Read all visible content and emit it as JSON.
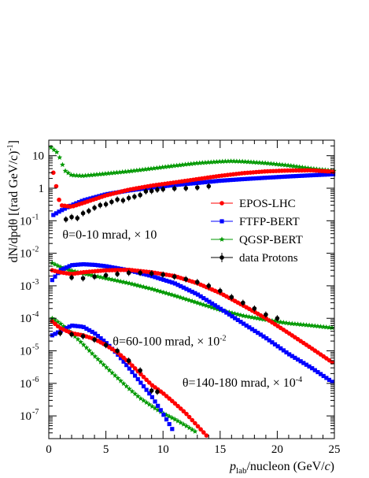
{
  "chart_data": {
    "type": "scatter",
    "xlabel_main": "p",
    "xlabel_sub": "lab",
    "xlabel_rest": "/nucleon (GeV/",
    "xlabel_c": "c",
    "xlabel_end": ")",
    "ylabel": "dN/dpdθ [(rad GeV/c)",
    "ylabel_exp": "-1",
    "ylabel_close": "]",
    "xlim": [
      0,
      25
    ],
    "ylim": [
      2e-08,
      30
    ],
    "yscale": "log",
    "x_ticks": [
      "0",
      "5",
      "10",
      "15",
      "20",
      "25"
    ],
    "y_ticks": [
      {
        "base": "10",
        "exp": "-7",
        "v": 1e-07
      },
      {
        "base": "10",
        "exp": "-6",
        "v": 1e-06
      },
      {
        "base": "10",
        "exp": "-5",
        "v": 1e-05
      },
      {
        "base": "10",
        "exp": "-4",
        "v": 0.0001
      },
      {
        "base": "10",
        "exp": "-3",
        "v": 0.001
      },
      {
        "base": "10",
        "exp": "-2",
        "v": 0.01
      },
      {
        "base": "10",
        "exp": "-1",
        "v": 0.1
      },
      {
        "plain": "1",
        "v": 1
      },
      {
        "plain": "10",
        "v": 10
      }
    ],
    "legend_placement": "middle-right",
    "legend": [
      {
        "name": "EPOS-LHC",
        "color": "#ff0000",
        "marker": "circle"
      },
      {
        "name": "FTFP-BERT",
        "color": "#0000ff",
        "marker": "square"
      },
      {
        "name": "QGSP-BERT",
        "color": "#009900",
        "marker": "star"
      },
      {
        "name": "data Protons",
        "color": "#000000",
        "marker": "circle"
      }
    ],
    "annotations": [
      {
        "prefix": "θ=0-10 mrad, × 10",
        "exp": "",
        "x": 1.2,
        "y": 0.028
      },
      {
        "prefix": "θ=60-100 mrad, × 10",
        "exp": "-2",
        "x": 5.6,
        "y": 1.5e-05
      },
      {
        "prefix": "θ=140-180 mrad, × 10",
        "exp": "-4",
        "x": 11.7,
        "y": 8e-07
      }
    ],
    "groups": [
      {
        "angle": "0-10",
        "epos": [
          [
            0.4,
            3.0
          ],
          [
            1.0,
            0.3
          ],
          [
            2.0,
            0.27
          ],
          [
            3.0,
            0.35
          ],
          [
            5.0,
            0.6
          ],
          [
            7.0,
            0.9
          ],
          [
            9.0,
            1.2
          ],
          [
            11.0,
            1.5
          ],
          [
            13.0,
            1.9
          ],
          [
            15.0,
            2.4
          ],
          [
            17.0,
            2.9
          ],
          [
            19.0,
            3.3
          ],
          [
            21.0,
            3.5
          ],
          [
            23.0,
            3.55
          ],
          [
            25.0,
            3.2
          ]
        ],
        "ftfp": [
          [
            0.4,
            0.15
          ],
          [
            1.0,
            0.2
          ],
          [
            2.0,
            0.3
          ],
          [
            3.0,
            0.42
          ],
          [
            5.0,
            0.65
          ],
          [
            7.0,
            0.85
          ],
          [
            9.0,
            1.05
          ],
          [
            11.0,
            1.25
          ],
          [
            13.0,
            1.45
          ],
          [
            15.0,
            1.7
          ],
          [
            17.0,
            1.9
          ],
          [
            19.0,
            2.1
          ],
          [
            21.0,
            2.3
          ],
          [
            23.0,
            2.5
          ],
          [
            25.0,
            2.7
          ]
        ],
        "qgsp": [
          [
            0.2,
            18.0
          ],
          [
            0.8,
            12.0
          ],
          [
            1.4,
            3.5
          ],
          [
            2.0,
            2.5
          ],
          [
            3.0,
            2.4
          ],
          [
            5.0,
            2.8
          ],
          [
            7.0,
            3.3
          ],
          [
            9.0,
            4.0
          ],
          [
            11.0,
            4.9
          ],
          [
            13.0,
            5.9
          ],
          [
            15.0,
            6.6
          ],
          [
            16.0,
            6.8
          ],
          [
            17.0,
            6.6
          ],
          [
            19.0,
            5.9
          ],
          [
            21.0,
            5.0
          ],
          [
            23.0,
            4.0
          ],
          [
            25.0,
            3.4
          ]
        ],
        "data": [
          [
            1.5,
            0.11
          ],
          [
            2.0,
            0.13
          ],
          [
            2.5,
            0.12
          ],
          [
            3.0,
            0.17
          ],
          [
            3.5,
            0.2
          ],
          [
            4.0,
            0.25
          ],
          [
            4.5,
            0.3
          ],
          [
            5.0,
            0.32
          ],
          [
            5.5,
            0.38
          ],
          [
            6.0,
            0.45
          ],
          [
            6.5,
            0.42
          ],
          [
            7.0,
            0.5
          ],
          [
            7.5,
            0.55
          ],
          [
            8.0,
            0.62
          ],
          [
            8.5,
            0.8
          ],
          [
            9.0,
            0.82
          ],
          [
            9.5,
            0.9
          ],
          [
            10.0,
            0.93
          ],
          [
            11.0,
            0.98
          ],
          [
            12.0,
            1.0
          ],
          [
            13.0,
            1.05
          ],
          [
            14.0,
            1.15
          ]
        ]
      },
      {
        "angle": "60-100",
        "epos": [
          [
            0.3,
            0.003
          ],
          [
            1.0,
            0.0026
          ],
          [
            2.0,
            0.0023
          ],
          [
            3.0,
            0.0026
          ],
          [
            5.0,
            0.003
          ],
          [
            7.0,
            0.0031
          ],
          [
            9.0,
            0.0026
          ],
          [
            11.0,
            0.002
          ],
          [
            13.0,
            0.0012
          ],
          [
            15.0,
            0.0006
          ],
          [
            17.0,
            0.00025
          ],
          [
            19.0,
            0.0001
          ],
          [
            21.0,
            3.5e-05
          ],
          [
            23.0,
            1.2e-05
          ],
          [
            25.0,
            4e-06
          ]
        ],
        "ftfp": [
          [
            0.3,
            0.0015
          ],
          [
            1.0,
            0.003
          ],
          [
            2.0,
            0.0043
          ],
          [
            3.0,
            0.0046
          ],
          [
            4.0,
            0.0044
          ],
          [
            5.0,
            0.004
          ],
          [
            7.0,
            0.003
          ],
          [
            9.0,
            0.002
          ],
          [
            11.0,
            0.0012
          ],
          [
            13.0,
            0.00055
          ],
          [
            15.0,
            0.0002
          ],
          [
            17.0,
            7e-05
          ],
          [
            19.0,
            2.5e-05
          ],
          [
            21.0,
            8e-06
          ],
          [
            23.0,
            3e-06
          ],
          [
            25.0,
            1e-06
          ]
        ],
        "qgsp": [
          [
            0.3,
            0.005
          ],
          [
            1.0,
            0.0038
          ],
          [
            2.0,
            0.0029
          ],
          [
            3.0,
            0.0024
          ],
          [
            5.0,
            0.0017
          ],
          [
            7.0,
            0.0012
          ],
          [
            9.0,
            0.0008
          ],
          [
            11.0,
            0.0005
          ],
          [
            13.0,
            0.0003
          ],
          [
            15.0,
            0.00018
          ],
          [
            17.0,
            0.00012
          ],
          [
            19.0,
            9e-05
          ],
          [
            21.0,
            7e-05
          ],
          [
            23.0,
            6e-05
          ],
          [
            25.0,
            5e-05
          ]
        ],
        "data": [
          [
            2.0,
            0.0018
          ],
          [
            3.0,
            0.0017
          ],
          [
            4.0,
            0.0019
          ],
          [
            5.0,
            0.0021
          ],
          [
            6.0,
            0.0023
          ],
          [
            7.0,
            0.0025
          ],
          [
            8.0,
            0.0025
          ],
          [
            9.0,
            0.0024
          ],
          [
            10.0,
            0.0022
          ],
          [
            11.0,
            0.0019
          ],
          [
            12.0,
            0.0016
          ],
          [
            13.0,
            0.0013
          ],
          [
            14.0,
            0.001
          ],
          [
            15.0,
            0.0007
          ],
          [
            16.0,
            0.00045
          ],
          [
            17.0,
            0.0003
          ],
          [
            18.0,
            0.0002
          ],
          [
            19.0,
            0.00013
          ],
          [
            20.0,
            0.0001
          ]
        ]
      },
      {
        "angle": "140-180",
        "epos": [
          [
            0.3,
            8e-05
          ],
          [
            1.0,
            5e-05
          ],
          [
            2.0,
            3.5e-05
          ],
          [
            3.0,
            3e-05
          ],
          [
            4.0,
            2.3e-05
          ],
          [
            5.0,
            1.5e-05
          ],
          [
            6.0,
            9e-06
          ],
          [
            7.0,
            4.5e-06
          ],
          [
            8.0,
            2e-06
          ],
          [
            9.0,
            9e-07
          ],
          [
            10.0,
            5e-07
          ],
          [
            11.0,
            2.5e-07
          ],
          [
            12.0,
            1.2e-07
          ],
          [
            13.0,
            5e-08
          ],
          [
            13.8,
            2.5e-08
          ]
        ],
        "ftfp": [
          [
            0.3,
            3e-05
          ],
          [
            1.0,
            4e-05
          ],
          [
            2.0,
            6e-05
          ],
          [
            3.0,
            5.5e-05
          ],
          [
            4.0,
            3.5e-05
          ],
          [
            5.0,
            1.8e-05
          ],
          [
            6.0,
            8e-06
          ],
          [
            7.0,
            3e-06
          ],
          [
            8.0,
            1.1e-06
          ],
          [
            9.0,
            4e-07
          ],
          [
            9.8,
            1.5e-07
          ],
          [
            10.5,
            6e-08
          ],
          [
            11.0,
            3e-08
          ]
        ],
        "qgsp": [
          [
            0.3,
            0.0001
          ],
          [
            1.0,
            7e-05
          ],
          [
            2.0,
            3.5e-05
          ],
          [
            3.0,
            1.6e-05
          ],
          [
            4.0,
            7e-06
          ],
          [
            5.0,
            3.2e-06
          ],
          [
            6.0,
            1.5e-06
          ],
          [
            7.0,
            7e-07
          ],
          [
            8.0,
            3.5e-07
          ],
          [
            9.0,
            2e-07
          ],
          [
            10.0,
            1.2e-07
          ],
          [
            11.0,
            8e-08
          ],
          [
            12.0,
            5e-08
          ],
          [
            13.0,
            3e-08
          ]
        ],
        "data": [
          [
            1.0,
            3.5e-05
          ],
          [
            2.0,
            3.2e-05
          ],
          [
            3.0,
            2.8e-05
          ],
          [
            4.0,
            2.2e-05
          ],
          [
            5.0,
            1.5e-05
          ],
          [
            6.0,
            1e-05
          ],
          [
            7.0,
            5e-06
          ],
          [
            8.0,
            2.5e-06
          ],
          [
            9.0,
            6e-07
          ],
          [
            9.5,
            5.5e-07
          ]
        ]
      }
    ]
  }
}
